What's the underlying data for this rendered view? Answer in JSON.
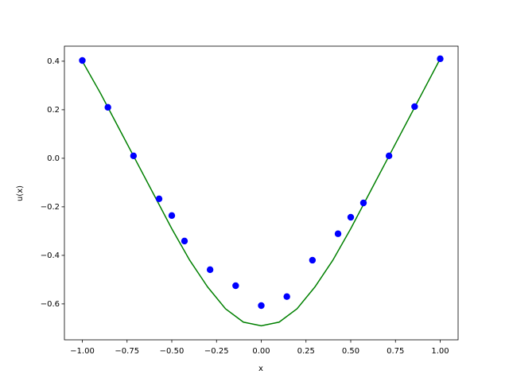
{
  "chart_data": {
    "type": "line",
    "xlabel": "x",
    "ylabel": "u(x)",
    "xlim": [
      -1.1,
      1.1
    ],
    "ylim": [
      -0.748,
      0.462
    ],
    "xticks": [
      {
        "value": -1,
        "label": "−1.00"
      },
      {
        "value": -0.75,
        "label": "−0.75"
      },
      {
        "value": -0.5,
        "label": "−0.50"
      },
      {
        "value": -0.25,
        "label": "−0.25"
      },
      {
        "value": 0,
        "label": "0.00"
      },
      {
        "value": 0.25,
        "label": "0.25"
      },
      {
        "value": 0.5,
        "label": "0.50"
      },
      {
        "value": 0.75,
        "label": "0.75"
      },
      {
        "value": 1,
        "label": "1.00"
      }
    ],
    "yticks": [
      {
        "value": -0.6,
        "label": "−0.6"
      },
      {
        "value": -0.4,
        "label": "−0.4"
      },
      {
        "value": -0.2,
        "label": "−0.2"
      },
      {
        "value": 0,
        "label": "0.0"
      },
      0.2,
      0.4
    ],
    "series": [
      {
        "style": "line",
        "color": "#008000",
        "x": [
          -1,
          -0.9,
          -0.8,
          -0.7,
          -0.6,
          -0.5,
          -0.4,
          -0.3,
          -0.2,
          -0.1,
          0,
          0.1,
          0.2,
          0.3,
          0.4,
          0.5,
          0.6,
          0.7,
          0.8,
          0.9,
          1
        ],
        "values": [
          0.4,
          0.27,
          0.13,
          -0.01,
          -0.15,
          -0.29,
          -0.42,
          -0.53,
          -0.62,
          -0.675,
          -0.69,
          -0.675,
          -0.62,
          -0.53,
          -0.42,
          -0.29,
          -0.15,
          -0.01,
          0.13,
          0.27,
          0.41
        ]
      },
      {
        "style": "markers",
        "color": "#0000ff",
        "x": [
          -1,
          -0.857,
          -0.714,
          -0.571,
          -0.5,
          -0.429,
          -0.286,
          -0.143,
          0,
          0.143,
          0.286,
          0.429,
          0.5,
          0.571,
          0.714,
          0.857,
          1
        ],
        "values": [
          0.403,
          0.21,
          0.01,
          -0.167,
          -0.236,
          -0.341,
          -0.459,
          -0.525,
          -0.607,
          -0.57,
          -0.42,
          -0.311,
          -0.243,
          -0.184,
          0.01,
          0.213,
          0.41
        ]
      }
    ]
  }
}
